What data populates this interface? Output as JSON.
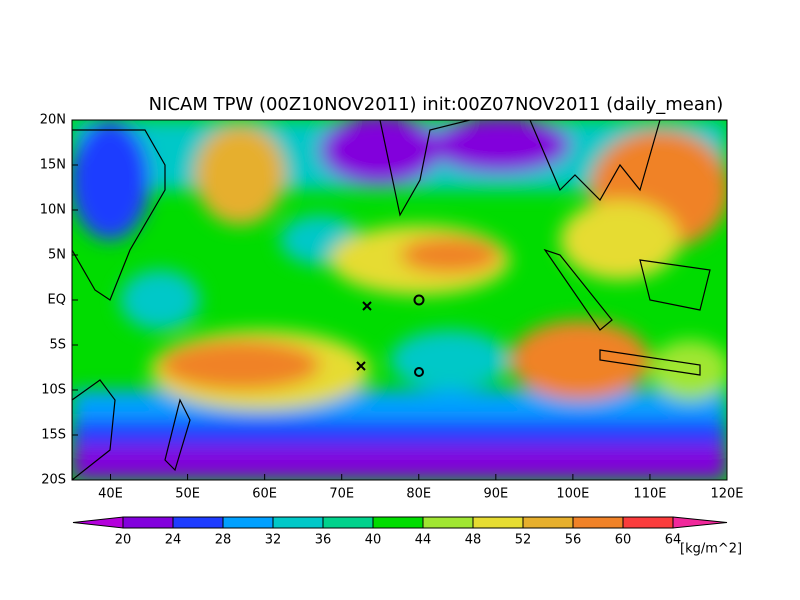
{
  "title": "NICAM TPW (00Z10NOV2011) init:00Z07NOV2011 (daily_mean)",
  "x_tick_labels": [
    "40E",
    "50E",
    "60E",
    "70E",
    "80E",
    "90E",
    "100E",
    "110E",
    "120E"
  ],
  "y_tick_labels": [
    "20N",
    "15N",
    "10N",
    "5N",
    "EQ",
    "5S",
    "10S",
    "15S",
    "20S"
  ],
  "colorbar": {
    "ticks": [
      20,
      24,
      28,
      32,
      36,
      40,
      44,
      48,
      52,
      56,
      60,
      64
    ],
    "colors": [
      "#b400dc",
      "#8200dc",
      "#1e3cff",
      "#00a0ff",
      "#00c8c8",
      "#00d28c",
      "#00dc00",
      "#a0e632",
      "#e6dc32",
      "#e6af2d",
      "#f08228",
      "#fa3c3c",
      "#f0289b"
    ],
    "unit": "[kg/m^2]"
  }
}
